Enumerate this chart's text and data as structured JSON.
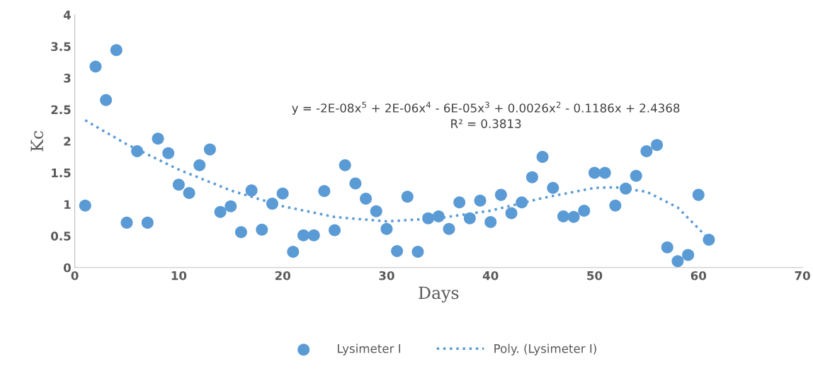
{
  "chart_data": {
    "type": "scatter",
    "xlabel": "Days",
    "ylabel": "Kc",
    "xlim": [
      0,
      70
    ],
    "xticks": [
      0,
      10,
      20,
      30,
      40,
      50,
      60,
      70
    ],
    "ylim": [
      0,
      4
    ],
    "yticks": [
      0,
      0.5,
      1,
      1.5,
      2,
      2.5,
      3,
      3.5,
      4
    ],
    "grid": false,
    "legend": "bottom",
    "marker": "circle",
    "annotations": [
      "y = -2E-08x$^{5}$ + 2E-06x$^{4}$ - 6E-05x$^{3}$ + 0.0026x$^{2}$ - 0.1186x + 2.4368",
      "R² = 0.3813"
    ],
    "series": [
      {
        "name": "Lysimeter I",
        "color": "#5b9bd5",
        "x": [
          1,
          2,
          3,
          4,
          5,
          6,
          7,
          8,
          9,
          10,
          11,
          12,
          13,
          14,
          15,
          16,
          17,
          18,
          19,
          20,
          21,
          22,
          23,
          24,
          25,
          26,
          27,
          28,
          29,
          30,
          31,
          32,
          33,
          34,
          35,
          36,
          37,
          38,
          39,
          40,
          41,
          42,
          43,
          44,
          45,
          46,
          47,
          48,
          49,
          50,
          51,
          52,
          53,
          54,
          55,
          56,
          57,
          58,
          59,
          60,
          61
        ],
        "values": [
          0.98,
          3.18,
          2.65,
          3.44,
          0.71,
          1.84,
          0.71,
          2.04,
          1.81,
          1.31,
          1.18,
          1.62,
          1.87,
          0.88,
          0.97,
          0.56,
          1.22,
          0.6,
          1.01,
          1.17,
          0.25,
          0.51,
          0.51,
          1.21,
          0.59,
          1.62,
          1.33,
          1.09,
          0.89,
          0.61,
          0.26,
          1.12,
          0.25,
          0.78,
          0.81,
          0.61,
          1.03,
          0.78,
          1.06,
          0.72,
          1.15,
          0.86,
          1.03,
          1.43,
          1.75,
          1.26,
          0.81,
          0.8,
          0.9,
          1.5,
          1.5,
          0.98,
          1.25,
          1.45,
          1.84,
          1.94,
          0.32,
          0.1,
          0.2,
          1.15,
          0.44
        ]
      },
      {
        "name": "Poly. (Lysimeter I)",
        "type": "line",
        "line_style": "dotted",
        "marker": "none",
        "color": "#5b9bd5",
        "x": [
          1,
          5,
          10,
          15,
          20,
          25,
          30,
          35,
          40,
          45,
          50,
          52,
          55,
          58,
          61
        ],
        "values": [
          2.33,
          1.95,
          1.55,
          1.22,
          0.97,
          0.8,
          0.73,
          0.78,
          0.9,
          1.1,
          1.26,
          1.27,
          1.2,
          0.95,
          0.45
        ]
      }
    ]
  }
}
